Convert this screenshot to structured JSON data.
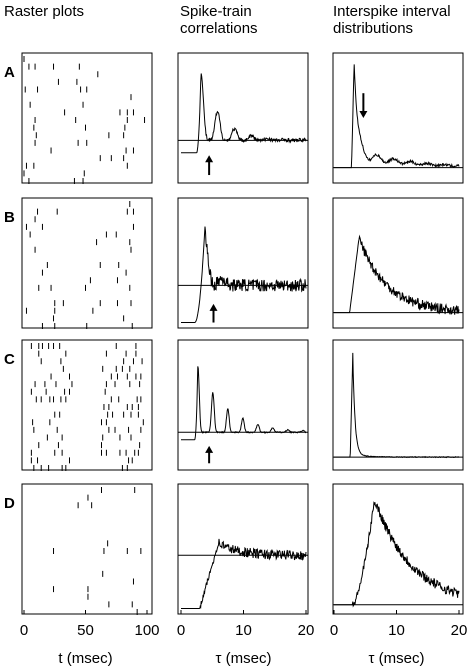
{
  "headers": [
    "Raster plots",
    "Spike-train correlations",
    "Interspike interval distributions"
  ],
  "row_labels": [
    "A",
    "B",
    "C",
    "D"
  ],
  "axes": [
    {
      "label": "t (msec)",
      "lim": [
        0,
        100
      ],
      "ticks": [
        0,
        50,
        100
      ]
    },
    {
      "label": "τ (msec)",
      "lim": [
        0,
        20
      ],
      "ticks": [
        0,
        10,
        20
      ]
    },
    {
      "label": "τ (msec)",
      "lim": [
        0,
        20
      ],
      "ticks": [
        0,
        10,
        20
      ]
    }
  ]
}
